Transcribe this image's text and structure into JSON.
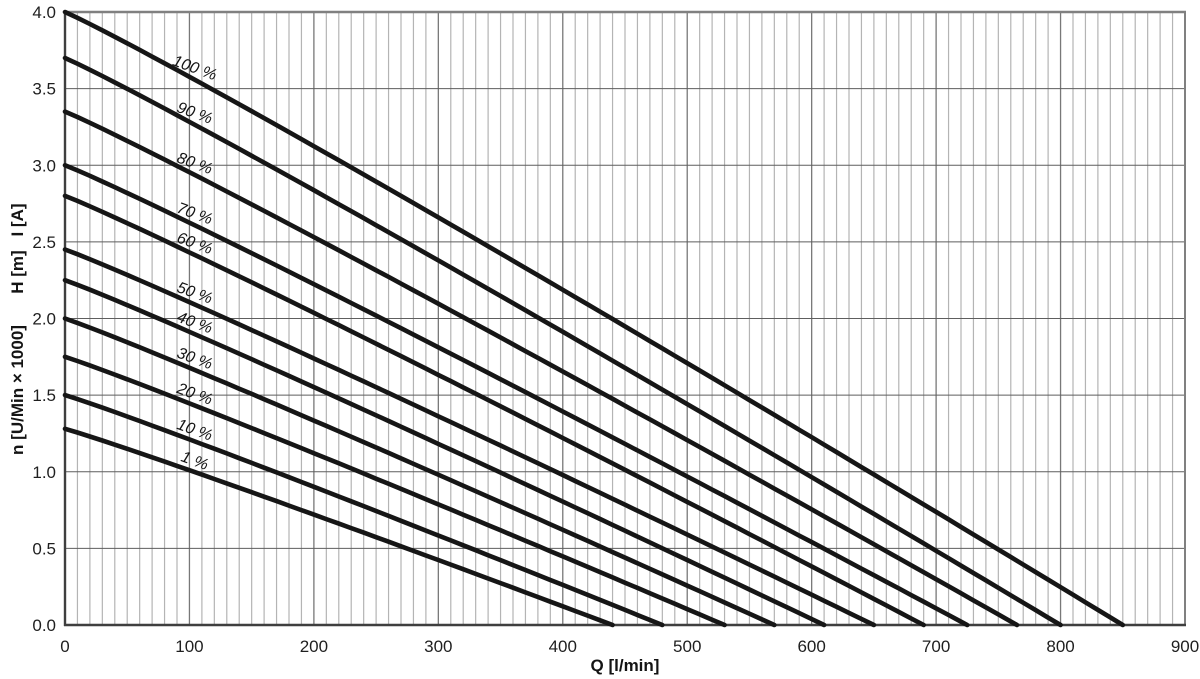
{
  "chart_data": {
    "type": "line",
    "title": "",
    "xlabel": "Q [l/min]",
    "ylabel_segments": [
      "n [U/Min × 1000]",
      "H [m]",
      "I [A]"
    ],
    "xlim": [
      0,
      900
    ],
    "ylim": [
      0.0,
      4.0
    ],
    "x_major_tick_step": 100,
    "x_minor_grid_step": 10,
    "y_tick_step": 0.5,
    "x_tick_labels": [
      "0",
      "100",
      "200",
      "300",
      "400",
      "500",
      "600",
      "700",
      "800",
      "900"
    ],
    "y_tick_labels": [
      "0.0",
      "0.5",
      "1.0",
      "1.5",
      "2.0",
      "2.5",
      "3.0",
      "3.5",
      "4.0"
    ],
    "grid": {
      "x_minor": true,
      "x_major": true,
      "y_major": true,
      "y_minor": false
    },
    "legend_position": "inline-curve-labels",
    "curve_model": {
      "formula": "y = y0 * (1 - (Q/Qmax)^k)",
      "k": 1.05
    },
    "series": [
      {
        "label": "100 %",
        "y0": 4.0,
        "qmax": 850,
        "points": [
          [
            0,
            4.0
          ],
          [
            100,
            3.58
          ],
          [
            200,
            3.12
          ],
          [
            300,
            2.66
          ],
          [
            400,
            2.19
          ],
          [
            500,
            1.71
          ],
          [
            600,
            1.23
          ],
          [
            700,
            0.74
          ],
          [
            800,
            0.25
          ],
          [
            850,
            0
          ]
        ]
      },
      {
        "label": "90 %",
        "y0": 3.7,
        "qmax": 800,
        "points": [
          [
            0,
            3.7
          ],
          [
            100,
            3.28
          ],
          [
            200,
            2.84
          ],
          [
            300,
            2.38
          ],
          [
            400,
            1.91
          ],
          [
            500,
            1.44
          ],
          [
            600,
            0.96
          ],
          [
            700,
            0.48
          ],
          [
            800,
            0
          ]
        ]
      },
      {
        "label": "80 %",
        "y0": 3.35,
        "qmax": 765,
        "points": [
          [
            0,
            3.35
          ],
          [
            100,
            2.95
          ],
          [
            200,
            2.53
          ],
          [
            300,
            2.1
          ],
          [
            400,
            1.65
          ],
          [
            500,
            1.21
          ],
          [
            600,
            0.75
          ],
          [
            700,
            0.3
          ],
          [
            765,
            0
          ]
        ]
      },
      {
        "label": "70 %",
        "y0": 3.0,
        "qmax": 725,
        "points": [
          [
            0,
            3.0
          ],
          [
            100,
            2.63
          ],
          [
            200,
            2.22
          ],
          [
            300,
            1.81
          ],
          [
            400,
            1.39
          ],
          [
            500,
            0.97
          ],
          [
            600,
            0.54
          ],
          [
            700,
            0.11
          ],
          [
            725,
            0
          ]
        ]
      },
      {
        "label": "60 %",
        "y0": 2.8,
        "qmax": 690,
        "points": [
          [
            0,
            2.8
          ],
          [
            100,
            2.43
          ],
          [
            200,
            2.04
          ],
          [
            300,
            1.63
          ],
          [
            400,
            1.22
          ],
          [
            500,
            0.8
          ],
          [
            600,
            0.38
          ],
          [
            690,
            0
          ]
        ]
      },
      {
        "label": "50 %",
        "y0": 2.45,
        "qmax": 650,
        "points": [
          [
            0,
            2.45
          ],
          [
            100,
            2.11
          ],
          [
            200,
            1.74
          ],
          [
            300,
            1.36
          ],
          [
            400,
            0.98
          ],
          [
            500,
            0.59
          ],
          [
            600,
            0.2
          ],
          [
            650,
            0
          ]
        ]
      },
      {
        "label": "40 %",
        "y0": 2.25,
        "qmax": 610,
        "points": [
          [
            0,
            2.25
          ],
          [
            100,
            1.91
          ],
          [
            200,
            1.55
          ],
          [
            300,
            1.18
          ],
          [
            400,
            0.81
          ],
          [
            500,
            0.42
          ],
          [
            600,
            0.04
          ],
          [
            610,
            0
          ]
        ]
      },
      {
        "label": "30 %",
        "y0": 2.0,
        "qmax": 570,
        "points": [
          [
            0,
            2.0
          ],
          [
            100,
            1.68
          ],
          [
            200,
            1.33
          ],
          [
            300,
            0.98
          ],
          [
            400,
            0.62
          ],
          [
            500,
            0.26
          ],
          [
            570,
            0
          ]
        ]
      },
      {
        "label": "20 %",
        "y0": 1.75,
        "qmax": 530,
        "points": [
          [
            0,
            1.75
          ],
          [
            100,
            1.45
          ],
          [
            200,
            1.12
          ],
          [
            300,
            0.79
          ],
          [
            400,
            0.45
          ],
          [
            500,
            0.1
          ],
          [
            530,
            0
          ]
        ]
      },
      {
        "label": "10 %",
        "y0": 1.5,
        "qmax": 480,
        "points": [
          [
            0,
            1.5
          ],
          [
            100,
            1.21
          ],
          [
            200,
            0.9
          ],
          [
            300,
            0.58
          ],
          [
            400,
            0.26
          ],
          [
            480,
            0
          ]
        ]
      },
      {
        "label": "1 %",
        "y0": 1.28,
        "qmax": 440,
        "points": [
          [
            0,
            1.28
          ],
          [
            100,
            1.01
          ],
          [
            200,
            0.72
          ],
          [
            300,
            0.42
          ],
          [
            400,
            0.12
          ],
          [
            440,
            0
          ]
        ]
      }
    ],
    "colors": {
      "background": "#ffffff",
      "curve": "#161616",
      "grid_minor": "#b4b4b4",
      "grid_major": "#787878",
      "grid_horizontal": "#5e5e5e",
      "frame": "#808080",
      "axis": "#3f3f3f",
      "text": "#1f1f1f"
    }
  }
}
